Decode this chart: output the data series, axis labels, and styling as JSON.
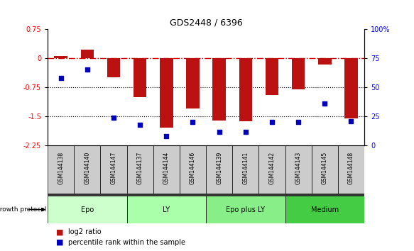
{
  "title": "GDS2448 / 6396",
  "samples": [
    "GSM144138",
    "GSM144140",
    "GSM144147",
    "GSM144137",
    "GSM144144",
    "GSM144146",
    "GSM144139",
    "GSM144141",
    "GSM144142",
    "GSM144143",
    "GSM144145",
    "GSM144148"
  ],
  "log2_ratio": [
    0.05,
    0.22,
    -0.5,
    -1.0,
    -1.78,
    -1.3,
    -1.6,
    -1.63,
    -0.95,
    -0.8,
    -0.17,
    -1.55
  ],
  "percentile_rank": [
    58,
    65,
    24,
    18,
    8,
    20,
    12,
    12,
    20,
    20,
    36,
    21
  ],
  "groups": [
    {
      "label": "Epo",
      "start": 0,
      "end": 3,
      "color": "#ccffcc"
    },
    {
      "label": "LY",
      "start": 3,
      "end": 6,
      "color": "#aaffaa"
    },
    {
      "label": "Epo plus LY",
      "start": 6,
      "end": 9,
      "color": "#88ee88"
    },
    {
      "label": "Medium",
      "start": 9,
      "end": 12,
      "color": "#44cc44"
    }
  ],
  "ylim_left": [
    -2.25,
    0.75
  ],
  "ylim_right": [
    0,
    100
  ],
  "yticks_left": [
    0.75,
    0,
    -0.75,
    -1.5,
    -2.25
  ],
  "yticks_right": [
    100,
    75,
    50,
    25,
    0
  ],
  "bar_color": "#bb1111",
  "dot_color": "#0000bb",
  "hline_color": "#cc0000",
  "dotted_lines": [
    -0.75,
    -1.5
  ],
  "legend_bar_label": "log2 ratio",
  "legend_dot_label": "percentile rank within the sample",
  "growth_protocol_label": "growth protocol",
  "sample_box_color": "#cccccc",
  "dark_band_color": "#333333"
}
